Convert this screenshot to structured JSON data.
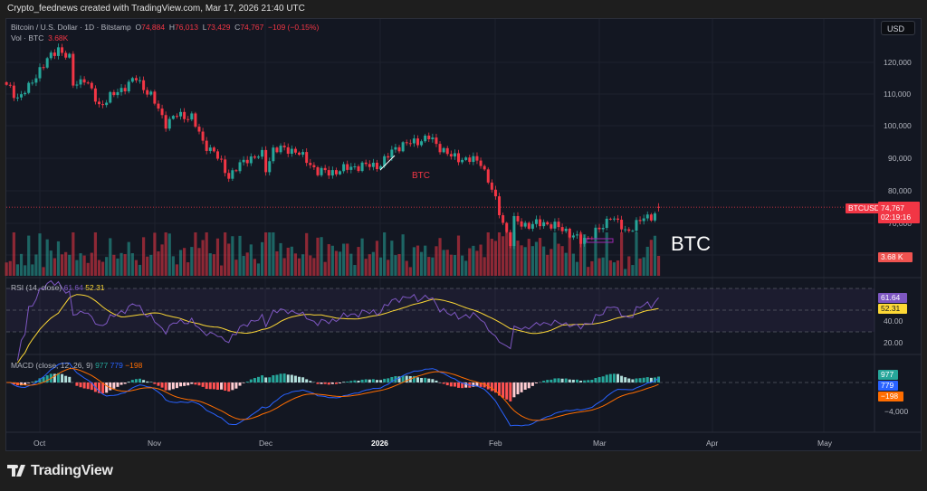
{
  "credit": "Crypto_feednews created with TradingView.com, Mar 17, 2026 21:40 UTC",
  "header": {
    "symbol": "Bitcoin / U.S. Dollar · 1D · Bitstamp",
    "open_label": "O",
    "open": "74,884",
    "high_label": "H",
    "high": "76,013",
    "low_label": "L",
    "low": "73,429",
    "close_label": "C",
    "close": "74,767",
    "change": "−109 (−0.15%)",
    "vol_label": "Vol · BTC",
    "vol": "3.68K"
  },
  "currency_button": "USD",
  "price_axis": [
    "120,000",
    "110,000",
    "100,000",
    "90,000",
    "80,000",
    "70,000"
  ],
  "price_tags": {
    "symbol": "BTCUSD",
    "price": "74,767",
    "countdown": "02:19:16",
    "volume": "3.68 K"
  },
  "rsi": {
    "label": "RSI (14, close)",
    "value": "61.64",
    "ma": "52.31",
    "axis": [
      "40.00",
      "20.00"
    ]
  },
  "macd": {
    "label": "MACD (close, 12, 26, 9)",
    "hist": "977",
    "macd": "779",
    "signal": "−198",
    "axis": [
      "−4,000"
    ]
  },
  "time_axis": [
    "Oct",
    "Nov",
    "Dec",
    "2026",
    "Feb",
    "Mar",
    "Apr",
    "May"
  ],
  "annotations": {
    "btc_small": "BTC",
    "btc_large": "BTC"
  },
  "brand": "TradingView",
  "colors": {
    "up": "#26a69a",
    "down": "#f23645",
    "rsi": "#7e57c2",
    "rsi_ma": "#fdd835",
    "macd": "#2962ff",
    "signal": "#ff6d00",
    "background": "#131722"
  },
  "chart_data": {
    "type": "candlestick",
    "symbol": "BTCUSD",
    "interval": "1D",
    "ylim": [
      60000,
      130000
    ],
    "close_keypoints": [
      [
        "2025-09-22",
        113000
      ],
      [
        "2025-09-25",
        109000
      ],
      [
        "2025-09-28",
        112000
      ],
      [
        "2025-10-01",
        118000
      ],
      [
        "2025-10-06",
        124500
      ],
      [
        "2025-10-09",
        121000
      ],
      [
        "2025-10-10",
        113000
      ],
      [
        "2025-10-13",
        115000
      ],
      [
        "2025-10-17",
        106500
      ],
      [
        "2025-10-21",
        110000
      ],
      [
        "2025-10-27",
        115000
      ],
      [
        "2025-10-31",
        109500
      ],
      [
        "2025-11-04",
        101000
      ],
      [
        "2025-11-07",
        103500
      ],
      [
        "2025-11-11",
        103000
      ],
      [
        "2025-11-14",
        95000
      ],
      [
        "2025-11-17",
        92000
      ],
      [
        "2025-11-21",
        84500
      ],
      [
        "2025-11-26",
        90000
      ],
      [
        "2025-11-30",
        91000
      ],
      [
        "2025-12-01",
        86500
      ],
      [
        "2025-12-03",
        93000
      ],
      [
        "2025-12-09",
        92500
      ],
      [
        "2025-12-15",
        86000
      ],
      [
        "2025-12-18",
        85500
      ],
      [
        "2025-12-25",
        87500
      ],
      [
        "2026-01-01",
        88000
      ],
      [
        "2026-01-05",
        93500
      ],
      [
        "2026-01-14",
        96500
      ],
      [
        "2026-01-20",
        90500
      ],
      [
        "2026-01-28",
        89000
      ],
      [
        "2026-01-31",
        80000
      ],
      [
        "2026-02-05",
        63500
      ],
      [
        "2026-02-06",
        70500
      ],
      [
        "2026-02-10",
        69000
      ],
      [
        "2026-02-14",
        70000
      ],
      [
        "2026-02-20",
        67500
      ],
      [
        "2026-02-24",
        64000
      ],
      [
        "2026-03-02",
        68500
      ],
      [
        "2026-03-04",
        72500
      ],
      [
        "2026-03-08",
        67000
      ],
      [
        "2026-03-12",
        70500
      ],
      [
        "2026-03-16",
        72800
      ],
      [
        "2026-03-17",
        74767
      ]
    ],
    "last_volume": "3.68K"
  }
}
